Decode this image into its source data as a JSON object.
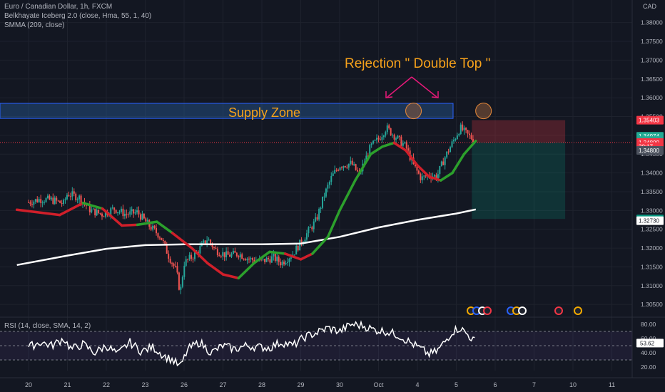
{
  "legend": {
    "title": "Euro / Canadian Dollar, 1h, FXCM",
    "indicator1": "Belkhayate Iceberg 2.0 (close, Hma, 55, 1, 40)",
    "indicator2": "SMMA (209, close)",
    "rsi": "RSI (14, close, SMA, 14, 2)"
  },
  "currency": "CAD",
  "annotations": {
    "supply_zone": "Supply Zone",
    "rejection": "Rejection \" Double Top \""
  },
  "colors": {
    "background": "#131722",
    "up": "#26a69a",
    "down": "#ef5350",
    "iceberg_up": "#2ca02c",
    "iceberg_down": "#d11f2a",
    "smma": "#ffffff",
    "zone": "#2a6bb5",
    "annotation": "#f7a21b",
    "arrow": "#e9197a",
    "rsi": "#ffffff"
  },
  "chart_data": [
    {
      "type": "candlestick",
      "x_labels": [
        "20",
        "21",
        "22",
        "23",
        "26",
        "27",
        "28",
        "29",
        "30",
        "Oct",
        "4",
        "5",
        "6",
        "7",
        "10",
        "11"
      ],
      "y_ticks": [
        "1.38000",
        "1.37500",
        "1.37000",
        "1.36500",
        "1.36000",
        "1.35500",
        "1.35000",
        "1.34500",
        "1.34000",
        "1.33500",
        "1.33000",
        "1.32500",
        "1.32000",
        "1.31500",
        "1.31000",
        "1.30500"
      ],
      "ylim": [
        1.302,
        1.386
      ],
      "close_path": [
        [
          0,
          1.3322
        ],
        [
          0.3,
          1.333
        ],
        [
          0.6,
          1.3328
        ],
        [
          0.9,
          1.3318
        ],
        [
          1.0,
          1.3345
        ],
        [
          1.3,
          1.3335
        ],
        [
          1.6,
          1.33
        ],
        [
          1.9,
          1.329
        ],
        [
          2.2,
          1.3305
        ],
        [
          2.5,
          1.329
        ],
        [
          2.8,
          1.3295
        ],
        [
          3.1,
          1.326
        ],
        [
          3.4,
          1.323
        ],
        [
          3.6,
          1.318
        ],
        [
          3.8,
          1.314
        ],
        [
          3.9,
          1.308
        ],
        [
          4.0,
          1.316
        ],
        [
          4.3,
          1.3185
        ],
        [
          4.6,
          1.3225
        ],
        [
          4.8,
          1.3195
        ],
        [
          5.1,
          1.318
        ],
        [
          5.4,
          1.3185
        ],
        [
          5.7,
          1.317
        ],
        [
          6.0,
          1.3165
        ],
        [
          6.3,
          1.3175
        ],
        [
          6.5,
          1.316
        ],
        [
          6.8,
          1.3185
        ],
        [
          7.1,
          1.323
        ],
        [
          7.4,
          1.3275
        ],
        [
          7.6,
          1.334
        ],
        [
          7.8,
          1.339
        ],
        [
          8.0,
          1.342
        ],
        [
          8.3,
          1.3425
        ],
        [
          8.5,
          1.3395
        ],
        [
          8.8,
          1.347
        ],
        [
          9.0,
          1.349
        ],
        [
          9.2,
          1.352
        ],
        [
          9.5,
          1.349
        ],
        [
          9.7,
          1.347
        ],
        [
          9.9,
          1.342
        ],
        [
          10.1,
          1.3385
        ],
        [
          10.3,
          1.3395
        ],
        [
          10.5,
          1.339
        ],
        [
          10.7,
          1.344
        ],
        [
          10.9,
          1.348
        ],
        [
          11.1,
          1.352
        ],
        [
          11.3,
          1.35
        ],
        [
          11.5,
          1.3485
        ]
      ],
      "iceberg": [
        [
          -0.3,
          1.3302,
          "d"
        ],
        [
          0.8,
          1.3288,
          "d"
        ],
        [
          1.4,
          1.332,
          "u"
        ],
        [
          1.9,
          1.3305,
          "d"
        ],
        [
          2.4,
          1.326,
          "d"
        ],
        [
          2.8,
          1.3262,
          "u"
        ],
        [
          3.3,
          1.327,
          "u"
        ],
        [
          3.7,
          1.324,
          "d"
        ],
        [
          4.2,
          1.32,
          "d"
        ],
        [
          4.6,
          1.316,
          "d"
        ],
        [
          5.0,
          1.313,
          "d"
        ],
        [
          5.4,
          1.312,
          "u"
        ],
        [
          5.8,
          1.316,
          "u"
        ],
        [
          6.2,
          1.319,
          "u"
        ],
        [
          6.6,
          1.3185,
          "d"
        ],
        [
          7.0,
          1.317,
          "d"
        ],
        [
          7.3,
          1.3185,
          "u"
        ],
        [
          7.7,
          1.323,
          "u"
        ],
        [
          8.0,
          1.33,
          "u"
        ],
        [
          8.4,
          1.338,
          "u"
        ],
        [
          8.8,
          1.345,
          "u"
        ],
        [
          9.1,
          1.347,
          "u"
        ],
        [
          9.4,
          1.348,
          "d"
        ],
        [
          9.7,
          1.346,
          "d"
        ],
        [
          10.0,
          1.342,
          "d"
        ],
        [
          10.3,
          1.339,
          "d"
        ],
        [
          10.6,
          1.338,
          "u"
        ],
        [
          10.9,
          1.34,
          "u"
        ],
        [
          11.2,
          1.345,
          "u"
        ],
        [
          11.5,
          1.3485,
          "u"
        ]
      ],
      "smma": [
        [
          -0.3,
          1.3155
        ],
        [
          1.0,
          1.318
        ],
        [
          2.0,
          1.3198
        ],
        [
          3.0,
          1.3208
        ],
        [
          4.0,
          1.321
        ],
        [
          5.0,
          1.321
        ],
        [
          6.0,
          1.321
        ],
        [
          7.0,
          1.3212
        ],
        [
          8.0,
          1.323
        ],
        [
          9.0,
          1.3255
        ],
        [
          10.0,
          1.3275
        ],
        [
          11.0,
          1.3292
        ],
        [
          11.5,
          1.3303
        ]
      ],
      "supply_zone": [
        1.3545,
        1.3585
      ],
      "short_position": {
        "entry": 1.34809,
        "stop": 1.35403,
        "target": 1.32775,
        "start_x": 11.4,
        "end_x": 13.8
      },
      "markers": [
        9.9,
        11.7
      ],
      "price_labels": [
        {
          "value": "1.35403",
          "price": 1.35403,
          "color": "#f23645"
        },
        {
          "value": "1.34974",
          "price": 1.34974,
          "color": "#22ab94"
        },
        {
          "value": "1.34862",
          "price": 1.34862,
          "color": "#22ab94"
        },
        {
          "value": "1.34809",
          "price": 1.34809,
          "color": "#f23645"
        },
        {
          "value": "30:17",
          "price": 1.347,
          "color": "#f23645"
        },
        {
          "value": "1.34800",
          "price": 1.346,
          "color": "#4c525e"
        },
        {
          "value": "1.32775",
          "price": 1.32775,
          "color": "#089981"
        },
        {
          "value": "1.32730",
          "price": 1.3273,
          "color": "#ffffff"
        }
      ]
    },
    {
      "type": "line",
      "name": "RSI",
      "y_ticks": [
        "80.00",
        "60.00",
        "40.00",
        "20.00"
      ],
      "ylim": [
        15,
        88
      ],
      "band": [
        30,
        70
      ],
      "current": "53.62",
      "values": [
        [
          0,
          48
        ],
        [
          0.3,
          55
        ],
        [
          0.6,
          50
        ],
        [
          0.9,
          60
        ],
        [
          1.1,
          45
        ],
        [
          1.4,
          52
        ],
        [
          1.7,
          40
        ],
        [
          2.0,
          50
        ],
        [
          2.3,
          38
        ],
        [
          2.6,
          55
        ],
        [
          2.9,
          42
        ],
        [
          3.2,
          48
        ],
        [
          3.5,
          35
        ],
        [
          3.7,
          30
        ],
        [
          3.9,
          20
        ],
        [
          4.1,
          45
        ],
        [
          4.4,
          55
        ],
        [
          4.7,
          40
        ],
        [
          5.0,
          50
        ],
        [
          5.3,
          45
        ],
        [
          5.6,
          50
        ],
        [
          5.9,
          48
        ],
        [
          6.2,
          47
        ],
        [
          6.5,
          55
        ],
        [
          6.8,
          50
        ],
        [
          7.1,
          62
        ],
        [
          7.4,
          68
        ],
        [
          7.7,
          75
        ],
        [
          8.0,
          70
        ],
        [
          8.3,
          80
        ],
        [
          8.6,
          78
        ],
        [
          8.9,
          72
        ],
        [
          9.2,
          70
        ],
        [
          9.5,
          65
        ],
        [
          9.8,
          55
        ],
        [
          10.1,
          45
        ],
        [
          10.3,
          38
        ],
        [
          10.5,
          42
        ],
        [
          10.7,
          55
        ],
        [
          10.9,
          70
        ],
        [
          11.1,
          75
        ],
        [
          11.3,
          65
        ],
        [
          11.5,
          55
        ]
      ]
    }
  ]
}
